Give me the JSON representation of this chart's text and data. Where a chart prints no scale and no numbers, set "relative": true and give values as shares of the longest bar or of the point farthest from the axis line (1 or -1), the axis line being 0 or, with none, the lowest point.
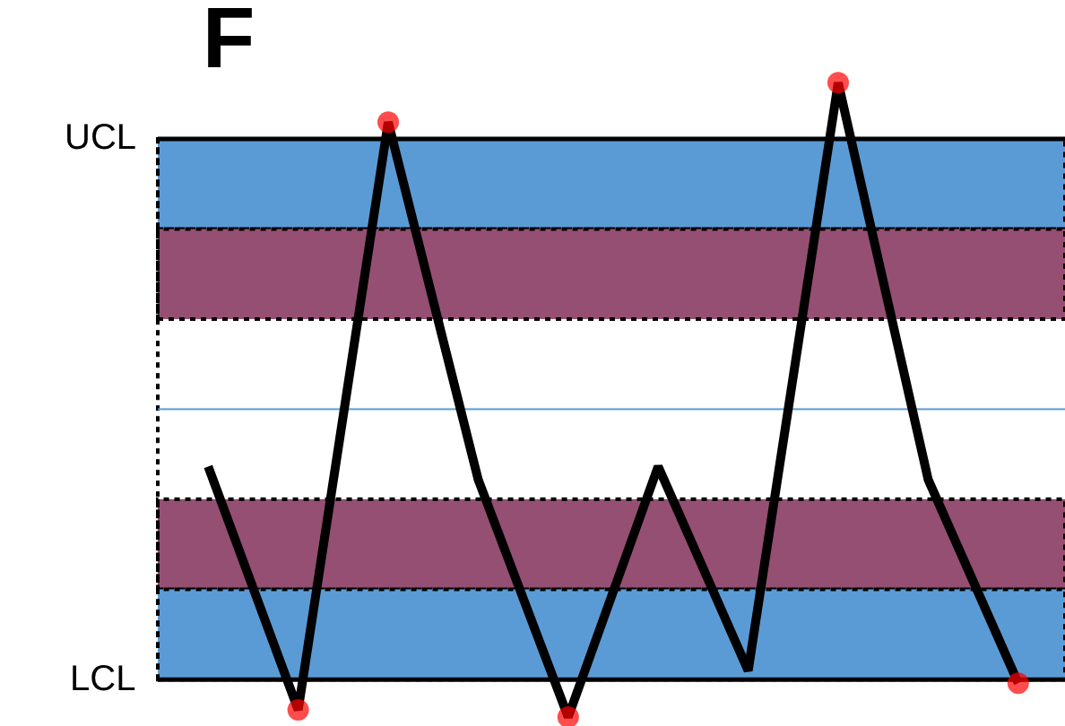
{
  "chart_data": {
    "type": "line",
    "title": "F",
    "relative": true,
    "categories": [
      null,
      null,
      null,
      null,
      null,
      null,
      null,
      null,
      null,
      null
    ],
    "series": [
      {
        "color": "#000000",
        "values": [
          0.357,
          -0.051,
          0.934,
          0.335,
          -0.063,
          0.357,
          0.015,
          1,
          0.335,
          -0.006
        ],
        "colors": [
          null,
          "#ff0000",
          "#ff0000",
          null,
          "#ff0000",
          null,
          null,
          "#ff0000",
          null,
          "#ff0000"
        ]
      }
    ],
    "marker": "circle",
    "bands": [
      {
        "axis": "y",
        "from": 0.755,
        "to": 0.906,
        "color": "#5b9bd5"
      },
      {
        "axis": "y",
        "from": 0.604,
        "to": 0.755,
        "color": "#954f72"
      },
      {
        "axis": "y",
        "from": 0.151,
        "to": 0.302,
        "color": "#954f72"
      },
      {
        "axis": "y",
        "from": 0,
        "to": 0.151,
        "color": "#5b9bd5"
      }
    ],
    "ref_lines": [
      {
        "axis": "y",
        "value": 0.906,
        "label": "UCL",
        "color": "#000000",
        "line_style": "solid"
      },
      {
        "axis": "y",
        "value": 0.453,
        "color": "#5b9bd5",
        "line_style": "solid"
      },
      {
        "axis": "y",
        "value": 0,
        "label": "LCL",
        "color": "#000000",
        "line_style": "solid"
      }
    ]
  }
}
